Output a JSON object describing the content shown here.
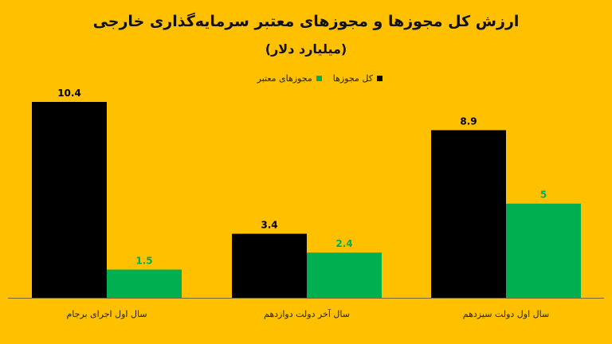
{
  "chart_data": {
    "type": "bar",
    "title": "ارزش کل مجوزها و مجوزهای معتبر سرمایه‌گذاری خارجی",
    "subtitle": "(میلیارد دلار)",
    "categories": [
      "سال اول اجرای برجام",
      "سال آخر دولت دوازدهم",
      "سال اول دولت سیزدهم"
    ],
    "series": [
      {
        "name": "کل مجوزها",
        "values": [
          10.4,
          3.4,
          8.9
        ],
        "color": "#000000",
        "label_color": "#000000"
      },
      {
        "name": "مجوزهای معتبر",
        "values": [
          1.5,
          2.4,
          5
        ],
        "color": "#00B050",
        "label_color": "#00B050"
      }
    ],
    "ylim": [
      0,
      10.4
    ],
    "grid": false,
    "legend": "top-center",
    "background": "#FFC000"
  }
}
